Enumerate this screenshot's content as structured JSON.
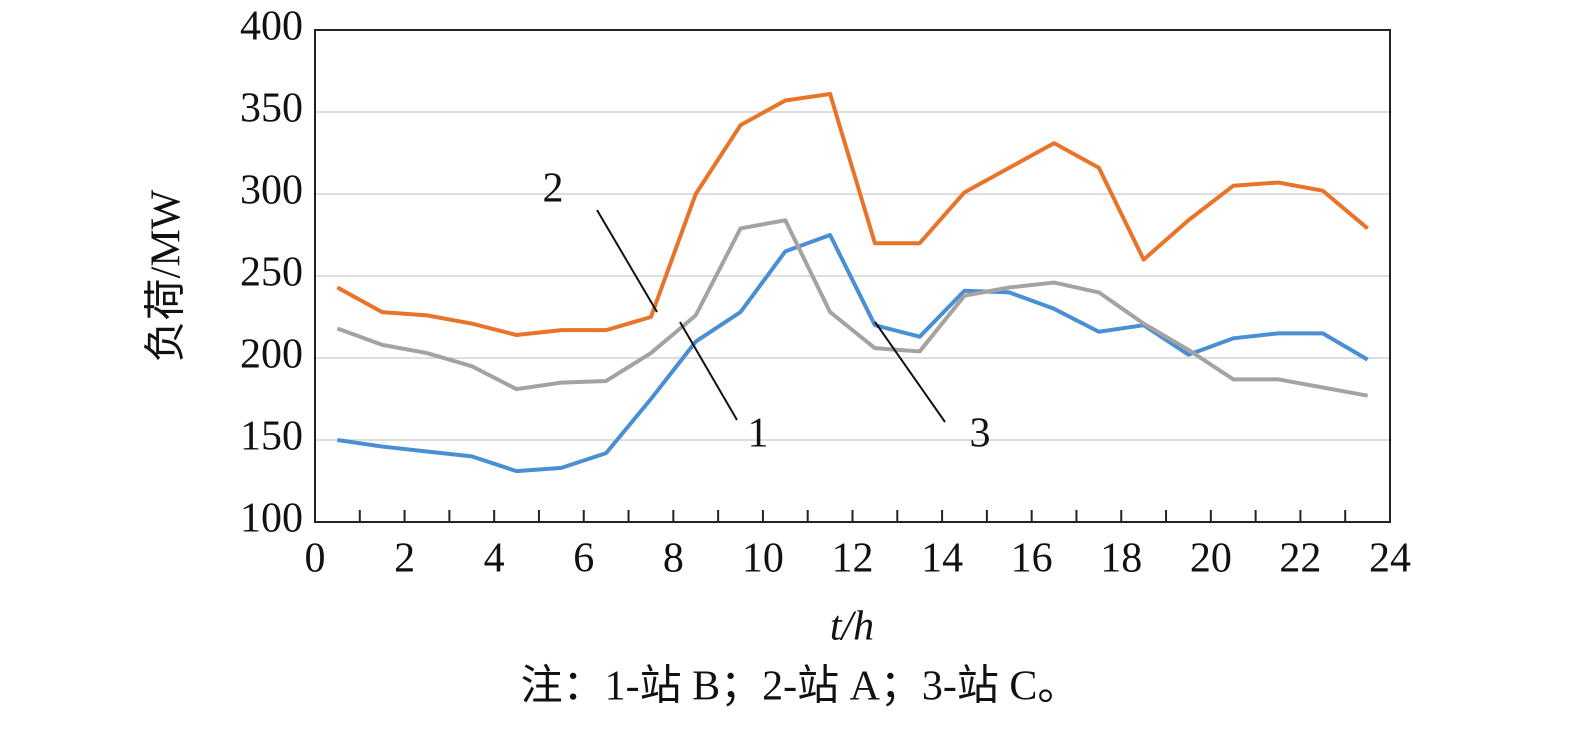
{
  "chart_data": {
    "type": "line",
    "y_label": "负荷/MW",
    "x_label": "t/h",
    "note": "注：1-站 B；2-站 A；3-站 C。",
    "x": [
      0.5,
      1.5,
      2.5,
      3.5,
      4.5,
      5.5,
      6.5,
      7.5,
      8.5,
      9.5,
      10.5,
      11.5,
      12.5,
      13.5,
      14.5,
      15.5,
      16.5,
      17.5,
      18.5,
      19.5,
      20.5,
      21.5,
      22.5,
      23.5
    ],
    "series": [
      {
        "name": "1",
        "color": "#4a8fd4",
        "values": [
          150,
          146,
          143,
          140,
          131,
          133,
          142,
          175,
          210,
          228,
          265,
          275,
          220,
          213,
          241,
          240,
          230,
          216,
          220,
          202,
          212,
          215,
          215,
          199
        ]
      },
      {
        "name": "2",
        "color": "#e8742a",
        "values": [
          243,
          228,
          226,
          221,
          214,
          217,
          217,
          225,
          300,
          342,
          357,
          361,
          270,
          270,
          301,
          316,
          331,
          316,
          260,
          284,
          305,
          307,
          302,
          279
        ]
      },
      {
        "name": "3",
        "color": "#a3a3a3",
        "values": [
          218,
          208,
          203,
          195,
          181,
          185,
          186,
          203,
          226,
          279,
          284,
          228,
          206,
          204,
          238,
          243,
          246,
          240,
          221,
          205,
          187,
          187,
          182,
          177
        ]
      }
    ],
    "xlim": [
      0,
      24
    ],
    "xticks": [
      0,
      2,
      4,
      6,
      8,
      10,
      12,
      14,
      16,
      18,
      20,
      22,
      24
    ],
    "x_minor_ticks": [
      1,
      3,
      5,
      7,
      9,
      11,
      13,
      15,
      17,
      19,
      21,
      23
    ],
    "ylim": [
      100,
      400
    ],
    "yticks": [
      100,
      150,
      200,
      250,
      300,
      350,
      400
    ],
    "grid": true
  }
}
